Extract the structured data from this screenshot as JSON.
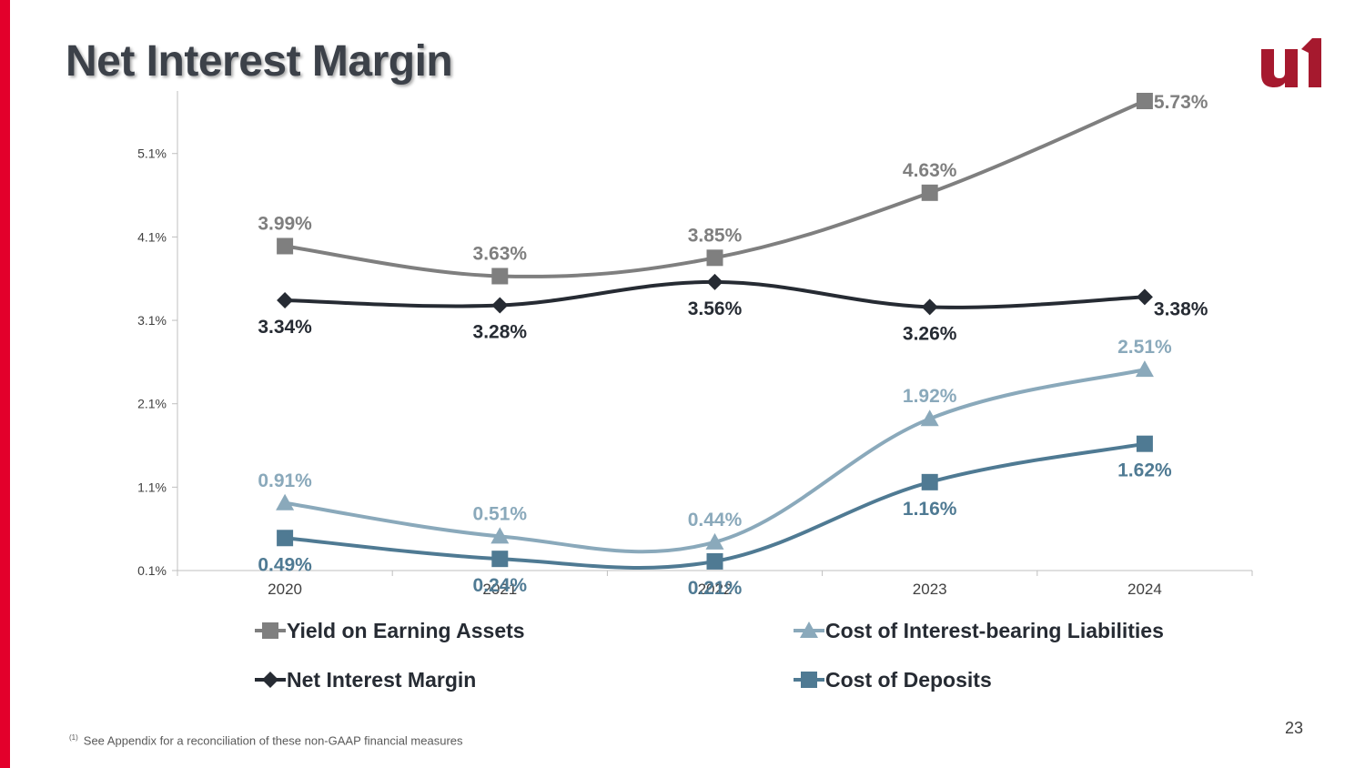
{
  "title": "Net Interest Margin",
  "footnote": {
    "marker": "(1)",
    "text": "See Appendix for a reconciliation of these non-GAAP financial measures"
  },
  "page_number": "23",
  "colors": {
    "accent_bar": "#e3002b",
    "logo": "#a6192e"
  },
  "chart_data": {
    "type": "line",
    "title": "",
    "xlabel": "",
    "ylabel": "",
    "categories": [
      "2020",
      "2021",
      "2022",
      "2023",
      "2024"
    ],
    "ylim": [
      0.1,
      5.85
    ],
    "yticks": [
      "0.1%",
      "1.1%",
      "2.1%",
      "3.1%",
      "4.1%",
      "5.1%"
    ],
    "ytick_values": [
      0.1,
      1.1,
      2.1,
      3.1,
      4.1,
      5.1
    ],
    "grid": false,
    "legend_position": "bottom",
    "series": [
      {
        "name": "Yield on Earning Assets",
        "values": [
          3.99,
          3.63,
          3.85,
          4.63,
          5.73
        ],
        "labels": [
          "3.99%",
          "3.63%",
          "3.85%",
          "4.63%",
          "5.73%"
        ],
        "color": "#7f7f7f",
        "marker": "square"
      },
      {
        "name": "Cost of Interest-bearing Liabilities",
        "values": [
          0.91,
          0.51,
          0.44,
          1.92,
          2.51
        ],
        "labels": [
          "0.91%",
          "0.51%",
          "0.44%",
          "1.92%",
          "2.51%"
        ],
        "color": "#8aa9bb",
        "marker": "triangle"
      },
      {
        "name": "Net Interest Margin",
        "values": [
          3.34,
          3.28,
          3.56,
          3.26,
          3.38
        ],
        "labels": [
          "3.34%",
          "3.28%",
          "3.56%",
          "3.26%",
          "3.38%"
        ],
        "color": "#262b33",
        "marker": "diamond"
      },
      {
        "name": "Cost of Deposits",
        "values": [
          0.49,
          0.24,
          0.21,
          1.16,
          1.62
        ],
        "labels": [
          "0.49%",
          "0.24%",
          "0.21%",
          "1.16%",
          "1.62%"
        ],
        "color": "#4f7a93",
        "marker": "square"
      }
    ]
  }
}
